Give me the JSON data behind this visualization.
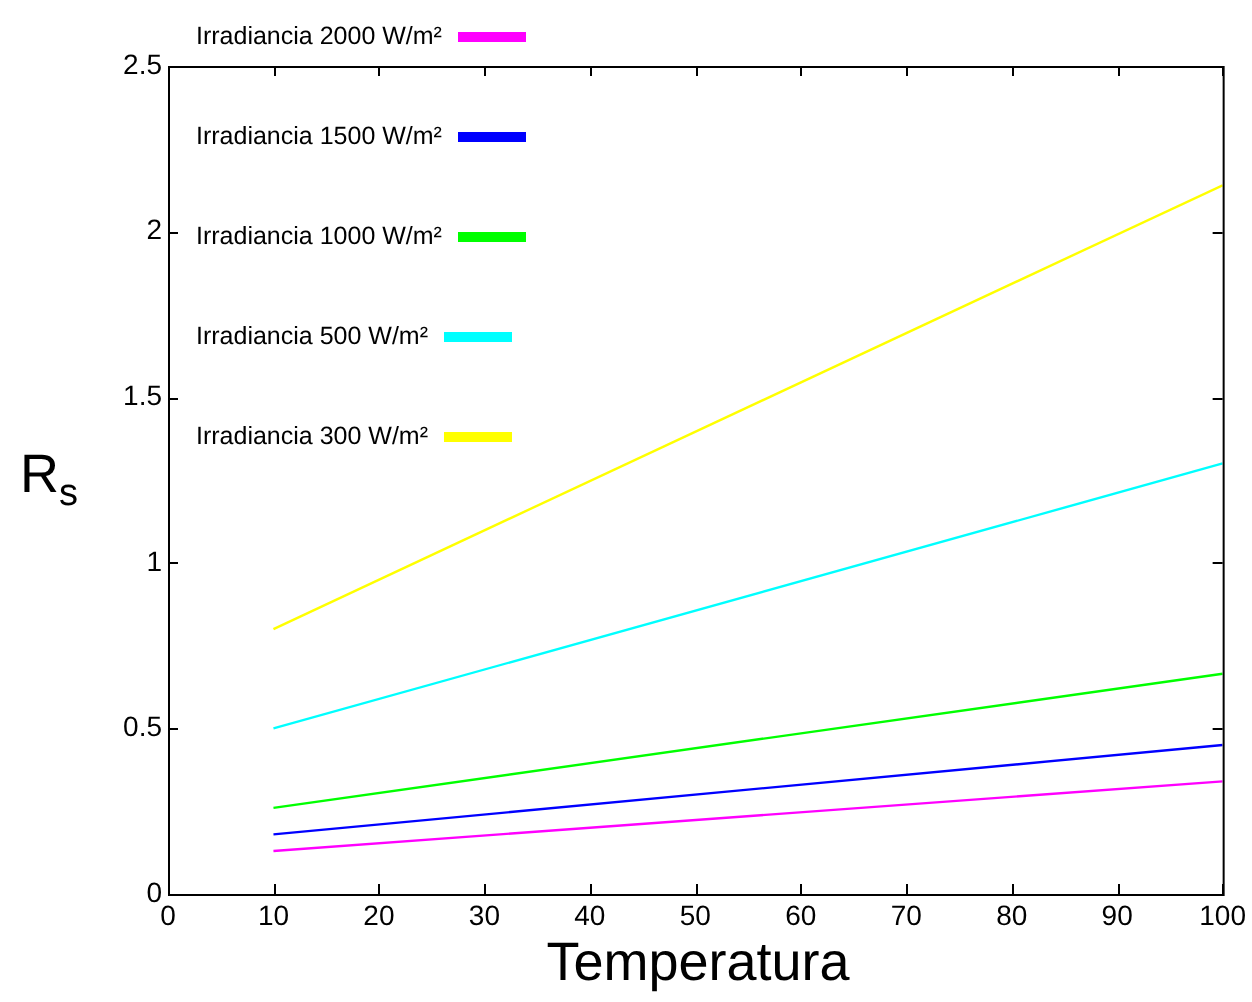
{
  "chart_data": {
    "type": "line",
    "xlabel": "Temperatura",
    "ylabel": "R$_{s}$",
    "x": [
      10,
      100
    ],
    "series": [
      {
        "name": "Irradiancia 2000 W/m²",
        "color": "#ff00ff",
        "values": [
          0.13,
          0.34
        ]
      },
      {
        "name": "Irradiancia 1500 W/m²",
        "color": "#0000ff",
        "values": [
          0.18,
          0.45
        ]
      },
      {
        "name": "Irradiancia 1000 W/m²",
        "color": "#00ff00",
        "values": [
          0.26,
          0.665
        ]
      },
      {
        "name": "Irradiancia 500 W/m²",
        "color": "#00ffff",
        "values": [
          0.5,
          1.3
        ]
      },
      {
        "name": "Irradiancia 300 W/m²",
        "color": "#ffff00",
        "values": [
          0.8,
          2.14
        ]
      }
    ],
    "xlim": [
      0,
      100
    ],
    "xticks": [
      0,
      10,
      20,
      30,
      40,
      50,
      60,
      70,
      80,
      90,
      100
    ],
    "ylim": [
      0,
      2.5
    ],
    "yticks": [
      0,
      0.5,
      1,
      1.5,
      2,
      2.5
    ],
    "grid": false,
    "legend": "top left",
    "marker": "none",
    "line_style": "solid"
  }
}
